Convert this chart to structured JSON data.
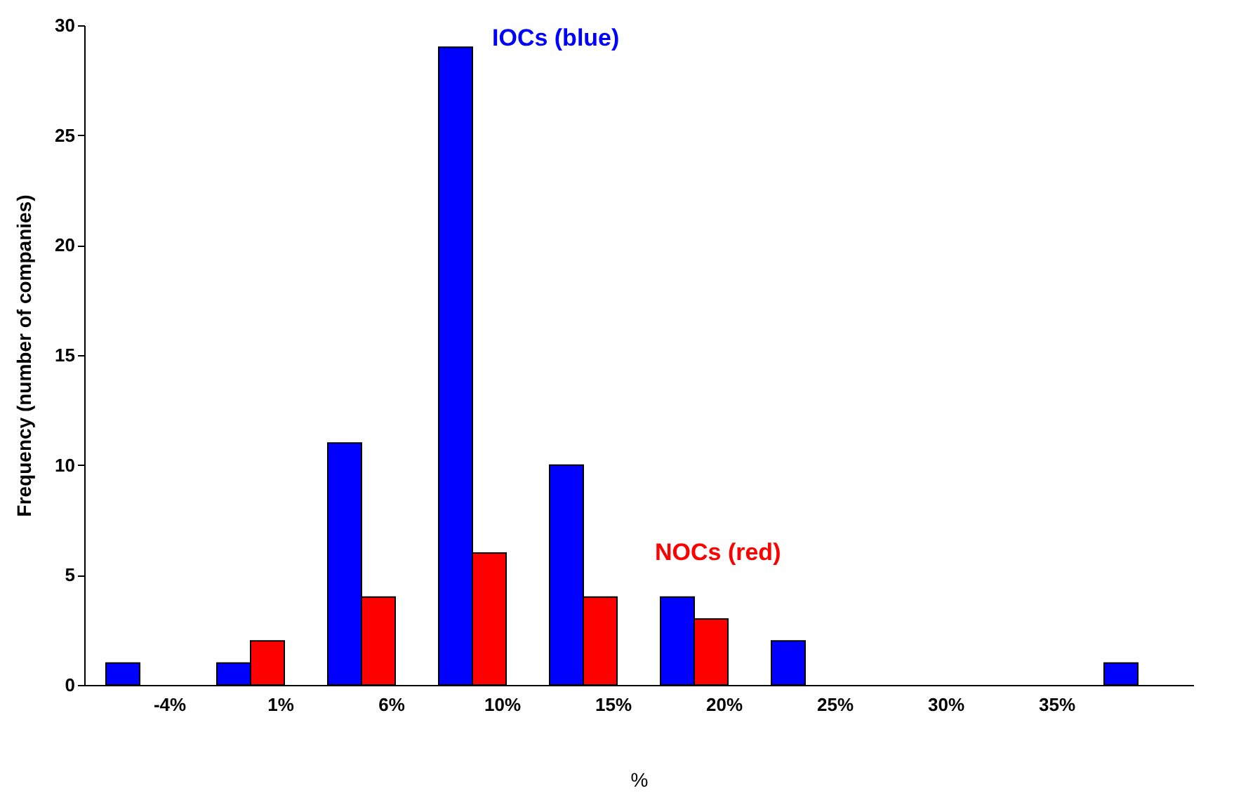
{
  "chart_data": {
    "type": "bar",
    "xlabel": "%",
    "ylabel": "Frequency (number of companies)",
    "categories": [
      "-4%",
      "1%",
      "6%",
      "10%",
      "15%",
      "20%",
      "25%",
      "30%",
      "35%",
      null
    ],
    "ylim": [
      0,
      30
    ],
    "yticks": [
      0,
      5,
      10,
      15,
      20,
      25,
      30
    ],
    "series": [
      {
        "color": "#0000ff",
        "values": [
          1,
          1,
          11,
          29,
          10,
          4,
          2,
          null,
          null,
          1
        ]
      },
      {
        "color": "#ff0000",
        "values": [
          null,
          2,
          4,
          6,
          4,
          3,
          null,
          null,
          null,
          null
        ]
      }
    ],
    "annotations": [
      "IOCs (blue)",
      "NOCs (red)"
    ]
  }
}
